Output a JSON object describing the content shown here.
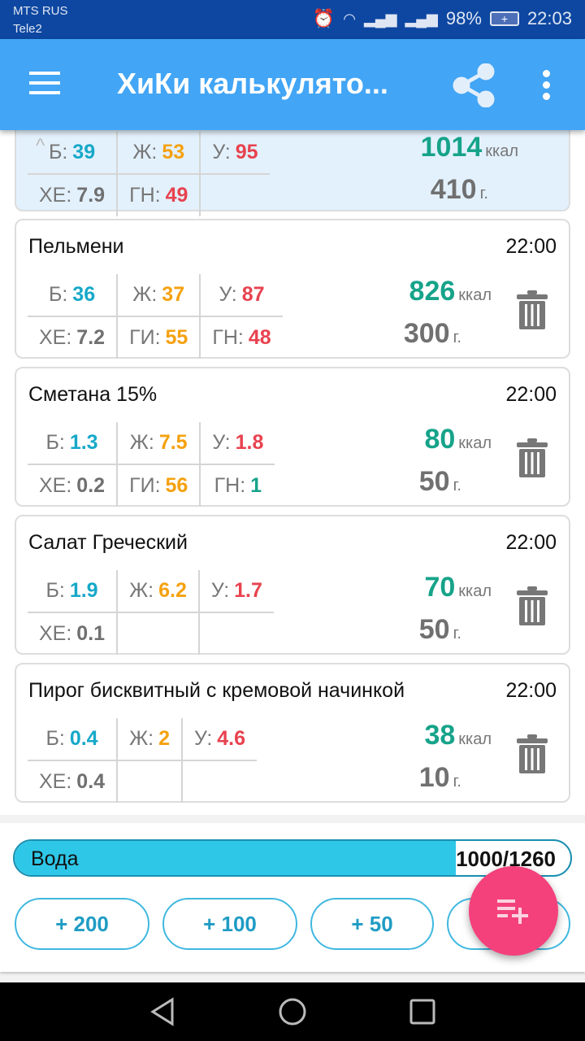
{
  "status_bar": {
    "carrier1": "MTS RUS",
    "carrier2": "Tele2",
    "battery": "98%",
    "time": "22:03",
    "icons": [
      "alarm-icon",
      "wifi-icon",
      "signal-icon",
      "signal-icon",
      "battery-charging-icon"
    ]
  },
  "app_bar": {
    "title": "ХиКи калькулято...",
    "icons": [
      "menu-icon",
      "share-icon",
      "more-vert-icon"
    ]
  },
  "colors": {
    "protein": "#16a8c9",
    "fat": "#f5a10f",
    "carb": "#e8424f",
    "green": "#16a38a",
    "grey": "#707070",
    "accent": "#42a5f5",
    "fab": "#f4417c"
  },
  "summary": {
    "row1": [
      {
        "label": "Б:",
        "value": "39",
        "color": "protein"
      },
      {
        "label": "Ж:",
        "value": "53",
        "color": "fat"
      },
      {
        "label": "У:",
        "value": "95",
        "color": "carb"
      }
    ],
    "row2": [
      {
        "label": "ХЕ:",
        "value": "7.9",
        "color": "grey"
      },
      {
        "label": "ГН:",
        "value": "49",
        "color": "carb"
      }
    ],
    "kcal": "1014",
    "kcal_unit": "ккал",
    "weight": "410",
    "weight_unit": "г."
  },
  "foods": [
    {
      "name": "Пельмени",
      "time": "22:00",
      "kcal": "826",
      "kcal_unit": "ккал",
      "weight": "300",
      "weight_unit": "г.",
      "row1": [
        {
          "label": "Б:",
          "value": "36",
          "color": "protein"
        },
        {
          "label": "Ж:",
          "value": "37",
          "color": "fat"
        },
        {
          "label": "У:",
          "value": "87",
          "color": "carb"
        }
      ],
      "row2": [
        {
          "label": "ХЕ:",
          "value": "7.2",
          "color": "grey"
        },
        {
          "label": "ГИ:",
          "value": "55",
          "color": "fat"
        },
        {
          "label": "ГН:",
          "value": "48",
          "color": "carb"
        }
      ]
    },
    {
      "name": "Сметана 15%",
      "time": "22:00",
      "kcal": "80",
      "kcal_unit": "ккал",
      "weight": "50",
      "weight_unit": "г.",
      "row1": [
        {
          "label": "Б:",
          "value": "1.3",
          "color": "protein"
        },
        {
          "label": "Ж:",
          "value": "7.5",
          "color": "fat"
        },
        {
          "label": "У:",
          "value": "1.8",
          "color": "carb"
        }
      ],
      "row2": [
        {
          "label": "ХЕ:",
          "value": "0.2",
          "color": "grey"
        },
        {
          "label": "ГИ:",
          "value": "56",
          "color": "fat"
        },
        {
          "label": "ГН:",
          "value": "1",
          "color": "green"
        }
      ]
    },
    {
      "name": "Салат Греческий",
      "time": "22:00",
      "kcal": "70",
      "kcal_unit": "ккал",
      "weight": "50",
      "weight_unit": "г.",
      "row1": [
        {
          "label": "Б:",
          "value": "1.9",
          "color": "protein"
        },
        {
          "label": "Ж:",
          "value": "6.2",
          "color": "fat"
        },
        {
          "label": "У:",
          "value": "1.7",
          "color": "carb"
        }
      ],
      "row2": [
        {
          "label": "ХЕ:",
          "value": "0.1",
          "color": "grey"
        }
      ]
    },
    {
      "name": "Пирог бисквитный с кремовой начинкой",
      "time": "22:00",
      "kcal": "38",
      "kcal_unit": "ккал",
      "weight": "10",
      "weight_unit": "г.",
      "row1": [
        {
          "label": "Б:",
          "value": "0.4",
          "color": "protein"
        },
        {
          "label": "Ж:",
          "value": "2",
          "color": "fat"
        },
        {
          "label": "У:",
          "value": "4.6",
          "color": "carb"
        }
      ],
      "row2": [
        {
          "label": "ХЕ:",
          "value": "0.4",
          "color": "grey"
        }
      ]
    }
  ],
  "water": {
    "label": "Вода",
    "value": "1000/1260",
    "progress_percent": 79.4,
    "buttons": [
      "+ 200",
      "+ 100",
      "+ 50",
      ""
    ]
  }
}
